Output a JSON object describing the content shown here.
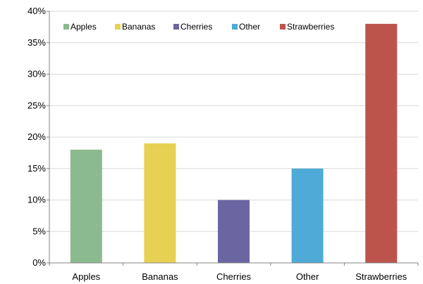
{
  "chart_data": {
    "type": "bar",
    "title": "",
    "xlabel": "",
    "ylabel": "",
    "categories": [
      "Apples",
      "Bananas",
      "Cherries",
      "Other",
      "Strawberries"
    ],
    "values": [
      18,
      19,
      10,
      15,
      38
    ],
    "colors": [
      "#8bba8f",
      "#e8d152",
      "#6b65a2",
      "#4eaad6",
      "#bd544c"
    ],
    "ylim": [
      0,
      40
    ],
    "yticks": [
      0,
      5,
      10,
      15,
      20,
      25,
      30,
      35,
      40
    ],
    "ytick_labels": [
      "0%",
      "5%",
      "10%",
      "15%",
      "20%",
      "25%",
      "30%",
      "35%",
      "40%"
    ],
    "grid": true,
    "legend": {
      "position": "top",
      "entries": [
        "Apples",
        "Bananas",
        "Cherries",
        "Other",
        "Strawberries"
      ]
    }
  }
}
